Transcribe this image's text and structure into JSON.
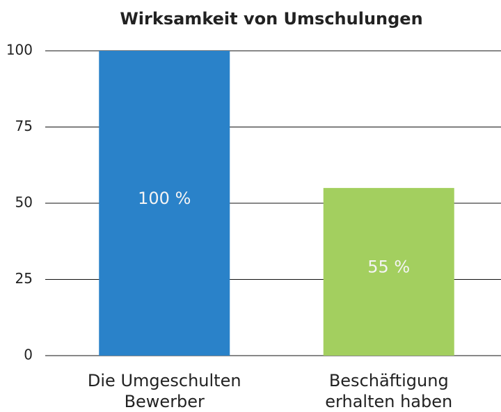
{
  "chart_data": {
    "type": "bar",
    "title": "Wirksamkeit von Umschulungen",
    "categories": [
      "Die Umgeschulten\nBewerber",
      "Beschäftigung\nerhalten haben"
    ],
    "values": [
      100,
      55
    ],
    "value_labels": [
      "100 %",
      "55 %"
    ],
    "colors": [
      "#2a82c9",
      "#a3cf5f"
    ],
    "ylim": [
      0,
      100
    ],
    "yticks": [
      0,
      25,
      50,
      75,
      100
    ],
    "grid": true
  }
}
